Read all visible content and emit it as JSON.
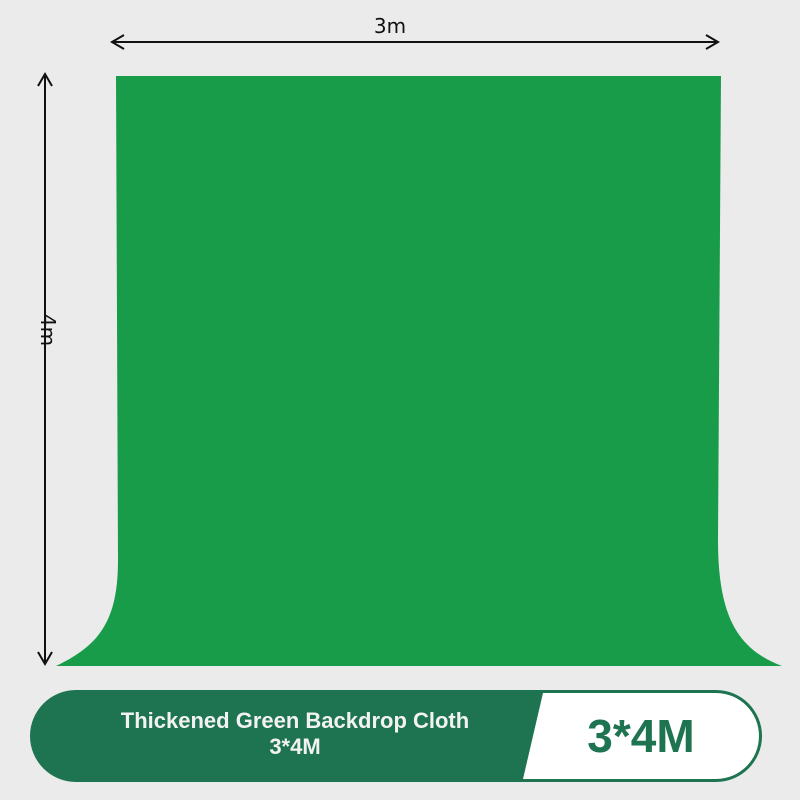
{
  "dimensions": {
    "width_label": "3m",
    "height_label": "4m"
  },
  "product": {
    "title_line1": "Thickened Green Backdrop Cloth",
    "title_line2": "3*4M",
    "size_badge": "3*4M"
  },
  "colors": {
    "backdrop": "#199c4a",
    "banner": "#1e7450",
    "background": "#ebebeb"
  }
}
